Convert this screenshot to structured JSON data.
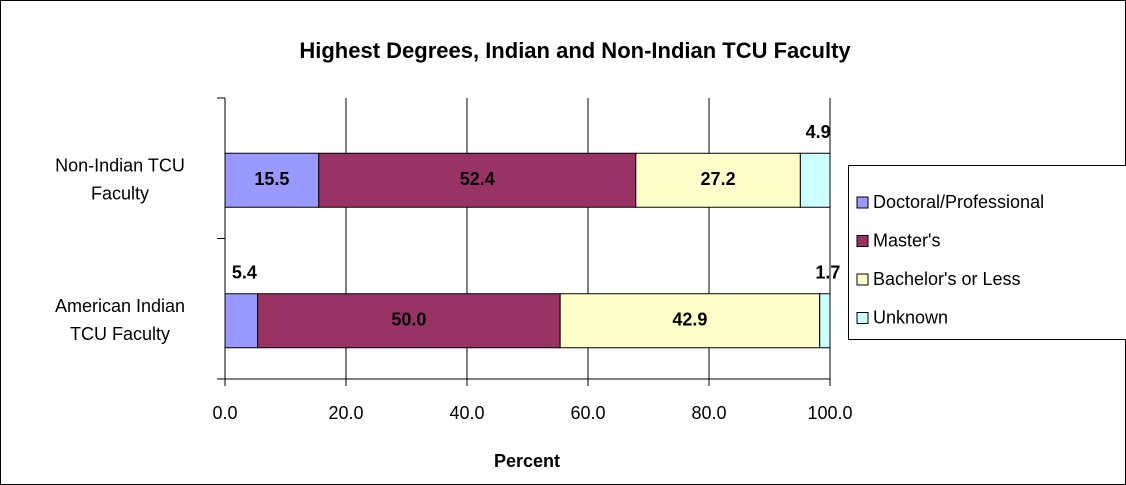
{
  "chart_data": {
    "type": "stacked_bar_horizontal",
    "title": "Highest Degrees, Indian and Non-Indian TCU Faculty",
    "xlabel": "Percent",
    "categories": [
      "Non-Indian TCU Faculty",
      "American Indian TCU Faculty"
    ],
    "series": [
      {
        "name": "Doctoral/Professional",
        "color": "#9999ff",
        "values": [
          15.5,
          5.4
        ],
        "value_labels": [
          "15.5",
          "5.4"
        ]
      },
      {
        "name": "Master's",
        "color": "#993366",
        "values": [
          52.4,
          50.0
        ],
        "value_labels": [
          "52.4",
          "50.0"
        ]
      },
      {
        "name": "Bachelor's or Less",
        "color": "#ffffcc",
        "values": [
          27.2,
          42.9
        ],
        "value_labels": [
          "27.2",
          "42.9"
        ]
      },
      {
        "name": "Unknown",
        "color": "#ccffff",
        "values": [
          4.9,
          1.7
        ],
        "value_labels": [
          "4.9",
          "1.7"
        ]
      }
    ],
    "xlim": [
      0,
      100
    ],
    "xticks": [
      {
        "value": 0,
        "label": "0.0"
      },
      {
        "value": 20,
        "label": "20.0"
      },
      {
        "value": 40,
        "label": "40.0"
      },
      {
        "value": 60,
        "label": "60.0"
      },
      {
        "value": 80,
        "label": "80.0"
      },
      {
        "value": 100,
        "label": "100.0"
      }
    ],
    "grid": true,
    "legend": "right"
  }
}
